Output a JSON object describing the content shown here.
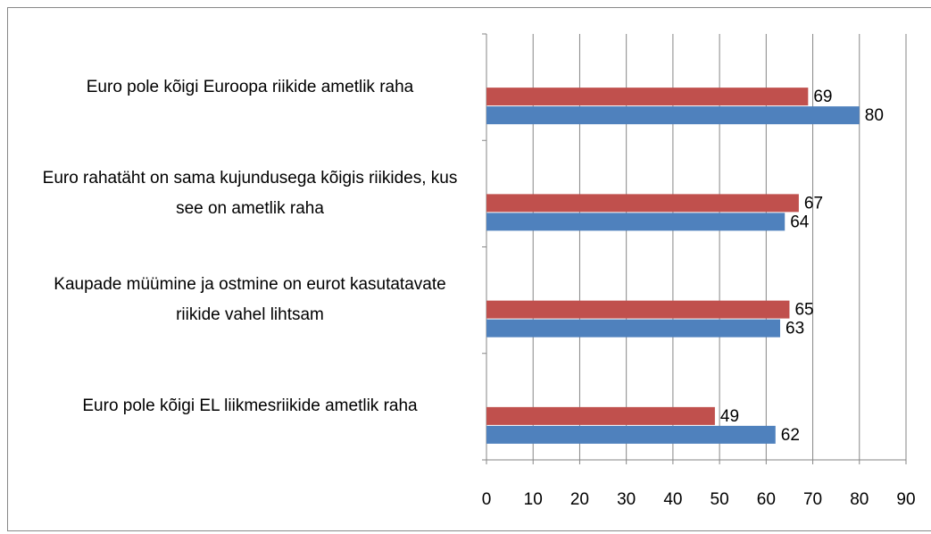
{
  "chart_data": {
    "type": "hbar",
    "categories": [
      "Euro pole kõigi Euroopa riikide ametlik raha",
      "Euro rahatäht on sama kujundusega kõigis riikides, kus see on ametlik raha",
      "Kaupade müümine ja ostmine on eurot kasutatavate riikide vahel lihtsam",
      "Euro pole kõigi EL liikmesriikide ametlik raha"
    ],
    "series": [
      {
        "color": "#c0504d",
        "values": [
          69,
          67,
          65,
          49
        ]
      },
      {
        "color": "#4f81bd",
        "values": [
          80,
          64,
          63,
          62
        ]
      }
    ],
    "xlim": [
      0,
      90
    ],
    "xticks": [
      0,
      10,
      20,
      30,
      40,
      50,
      60,
      70,
      80,
      90
    ],
    "grid": true
  }
}
